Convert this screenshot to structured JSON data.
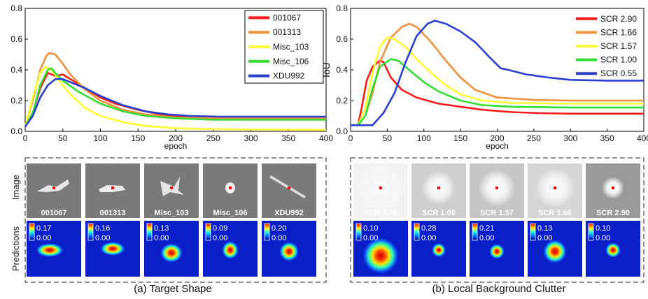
{
  "chart_data": [
    {
      "type": "line",
      "panel": "a",
      "title": "",
      "xlabel": "epoch",
      "ylabel": "",
      "xlim": [
        0,
        400
      ],
      "ylim": [
        0,
        0.8
      ],
      "xticks": [
        0,
        50,
        100,
        150,
        200,
        250,
        300,
        350,
        400
      ],
      "yticks": [
        0.0,
        0.2,
        0.4,
        0.6,
        0.8
      ],
      "legend_position": "top-right",
      "series": [
        {
          "name": "001067",
          "color": "#ff1a1a",
          "points": [
            [
              0,
              0.03
            ],
            [
              10,
              0.12
            ],
            [
              20,
              0.28
            ],
            [
              30,
              0.38
            ],
            [
              35,
              0.37
            ],
            [
              40,
              0.36
            ],
            [
              50,
              0.37
            ],
            [
              60,
              0.34
            ],
            [
              80,
              0.28
            ],
            [
              100,
              0.22
            ],
            [
              120,
              0.18
            ],
            [
              150,
              0.14
            ],
            [
              180,
              0.11
            ],
            [
              210,
              0.095
            ],
            [
              250,
              0.09
            ],
            [
              300,
              0.09
            ],
            [
              350,
              0.09
            ],
            [
              400,
              0.09
            ]
          ]
        },
        {
          "name": "001313",
          "color": "#f0913c",
          "points": [
            [
              0,
              0.03
            ],
            [
              10,
              0.2
            ],
            [
              20,
              0.4
            ],
            [
              28,
              0.49
            ],
            [
              32,
              0.51
            ],
            [
              40,
              0.5
            ],
            [
              50,
              0.44
            ],
            [
              60,
              0.37
            ],
            [
              80,
              0.27
            ],
            [
              100,
              0.2
            ],
            [
              130,
              0.14
            ],
            [
              160,
              0.11
            ],
            [
              200,
              0.09
            ],
            [
              250,
              0.085
            ],
            [
              300,
              0.085
            ],
            [
              350,
              0.085
            ],
            [
              400,
              0.085
            ]
          ]
        },
        {
          "name": "Misc_103",
          "color": "#ffff33",
          "points": [
            [
              0,
              0.03
            ],
            [
              10,
              0.22
            ],
            [
              20,
              0.38
            ],
            [
              28,
              0.42
            ],
            [
              35,
              0.4
            ],
            [
              45,
              0.33
            ],
            [
              60,
              0.24
            ],
            [
              80,
              0.15
            ],
            [
              100,
              0.1
            ],
            [
              130,
              0.06
            ],
            [
              160,
              0.035
            ],
            [
              200,
              0.02
            ],
            [
              250,
              0.015
            ],
            [
              300,
              0.012
            ],
            [
              400,
              0.01
            ]
          ]
        },
        {
          "name": "Misc_106",
          "color": "#33dd33",
          "points": [
            [
              0,
              0.03
            ],
            [
              10,
              0.12
            ],
            [
              20,
              0.3
            ],
            [
              30,
              0.4
            ],
            [
              35,
              0.41
            ],
            [
              40,
              0.38
            ],
            [
              50,
              0.33
            ],
            [
              70,
              0.26
            ],
            [
              100,
              0.18
            ],
            [
              130,
              0.13
            ],
            [
              160,
              0.1
            ],
            [
              200,
              0.085
            ],
            [
              250,
              0.075
            ],
            [
              300,
              0.075
            ],
            [
              400,
              0.075
            ]
          ]
        },
        {
          "name": "XDU992",
          "color": "#2a3fcf",
          "points": [
            [
              0,
              0.03
            ],
            [
              10,
              0.1
            ],
            [
              20,
              0.22
            ],
            [
              30,
              0.3
            ],
            [
              40,
              0.34
            ],
            [
              50,
              0.34
            ],
            [
              60,
              0.32
            ],
            [
              80,
              0.28
            ],
            [
              100,
              0.23
            ],
            [
              130,
              0.17
            ],
            [
              160,
              0.13
            ],
            [
              190,
              0.11
            ],
            [
              220,
              0.1
            ],
            [
              260,
              0.095
            ],
            [
              300,
              0.095
            ],
            [
              350,
              0.095
            ],
            [
              400,
              0.095
            ]
          ]
        }
      ]
    },
    {
      "type": "line",
      "panel": "b",
      "title": "",
      "xlabel": "epoch",
      "ylabel": "IoU",
      "xlim": [
        0,
        400
      ],
      "ylim": [
        0,
        0.8
      ],
      "xticks": [
        0,
        50,
        100,
        150,
        200,
        250,
        300,
        350,
        400
      ],
      "yticks": [
        0.0,
        0.2,
        0.4,
        0.6,
        0.8
      ],
      "legend_position": "top-right",
      "series": [
        {
          "name": "SCR 2.90",
          "color": "#ff1a1a",
          "points": [
            [
              0,
              0.04
            ],
            [
              10,
              0.04
            ],
            [
              15,
              0.15
            ],
            [
              22,
              0.33
            ],
            [
              30,
              0.42
            ],
            [
              40,
              0.46
            ],
            [
              45,
              0.45
            ],
            [
              55,
              0.35
            ],
            [
              70,
              0.27
            ],
            [
              90,
              0.22
            ],
            [
              120,
              0.18
            ],
            [
              150,
              0.16
            ],
            [
              180,
              0.14
            ],
            [
              220,
              0.125
            ],
            [
              260,
              0.118
            ],
            [
              300,
              0.115
            ],
            [
              400,
              0.115
            ]
          ]
        },
        {
          "name": "SCR 1.66",
          "color": "#f0913c",
          "points": [
            [
              0,
              0.04
            ],
            [
              10,
              0.04
            ],
            [
              20,
              0.1
            ],
            [
              30,
              0.25
            ],
            [
              40,
              0.45
            ],
            [
              55,
              0.61
            ],
            [
              70,
              0.68
            ],
            [
              80,
              0.7
            ],
            [
              90,
              0.68
            ],
            [
              110,
              0.58
            ],
            [
              130,
              0.46
            ],
            [
              150,
              0.35
            ],
            [
              170,
              0.27
            ],
            [
              200,
              0.22
            ],
            [
              250,
              0.205
            ],
            [
              300,
              0.2
            ],
            [
              400,
              0.2
            ]
          ]
        },
        {
          "name": "SCR 1.57",
          "color": "#ffff33",
          "points": [
            [
              0,
              0.04
            ],
            [
              10,
              0.04
            ],
            [
              20,
              0.15
            ],
            [
              30,
              0.38
            ],
            [
              40,
              0.55
            ],
            [
              50,
              0.61
            ],
            [
              60,
              0.6
            ],
            [
              75,
              0.55
            ],
            [
              90,
              0.47
            ],
            [
              110,
              0.38
            ],
            [
              130,
              0.3
            ],
            [
              150,
              0.24
            ],
            [
              180,
              0.2
            ],
            [
              220,
              0.185
            ],
            [
              300,
              0.18
            ],
            [
              400,
              0.18
            ]
          ]
        },
        {
          "name": "SCR 1.00",
          "color": "#33dd33",
          "points": [
            [
              0,
              0.04
            ],
            [
              10,
              0.04
            ],
            [
              20,
              0.1
            ],
            [
              30,
              0.28
            ],
            [
              40,
              0.42
            ],
            [
              55,
              0.47
            ],
            [
              65,
              0.46
            ],
            [
              80,
              0.4
            ],
            [
              100,
              0.32
            ],
            [
              120,
              0.26
            ],
            [
              150,
              0.2
            ],
            [
              180,
              0.17
            ],
            [
              220,
              0.16
            ],
            [
              300,
              0.155
            ],
            [
              400,
              0.155
            ]
          ]
        },
        {
          "name": "SCR 0.55",
          "color": "#2a3fcf",
          "points": [
            [
              0,
              0.04
            ],
            [
              15,
              0.04
            ],
            [
              30,
              0.04
            ],
            [
              45,
              0.12
            ],
            [
              60,
              0.25
            ],
            [
              75,
              0.45
            ],
            [
              90,
              0.62
            ],
            [
              105,
              0.7
            ],
            [
              115,
              0.72
            ],
            [
              130,
              0.7
            ],
            [
              150,
              0.65
            ],
            [
              170,
              0.58
            ],
            [
              190,
              0.48
            ],
            [
              205,
              0.41
            ],
            [
              215,
              0.4
            ],
            [
              240,
              0.37
            ],
            [
              270,
              0.35
            ],
            [
              300,
              0.335
            ],
            [
              350,
              0.33
            ],
            [
              400,
              0.33
            ]
          ]
        }
      ]
    }
  ],
  "panel_a": {
    "row_labels": {
      "image": "Image",
      "predictions": "Predictions"
    },
    "caption": "(a)  Target Shape",
    "thumbnails": [
      {
        "label": "001067",
        "max": "0.17",
        "min": "0.00"
      },
      {
        "label": "001313",
        "max": "0.16",
        "min": "0.00"
      },
      {
        "label": "Misc_103",
        "max": "0.13",
        "min": "0.00"
      },
      {
        "label": "Misc_106",
        "max": "0.09",
        "min": "0.00"
      },
      {
        "label": "XDU992",
        "max": "0.20",
        "min": "0.00"
      }
    ]
  },
  "panel_b": {
    "caption": "(b)  Local Background Clutter",
    "thumbnails": [
      {
        "label": "SCR 0.55",
        "max": "0.10",
        "min": "0.00"
      },
      {
        "label": "SCR 1.00",
        "max": "0.28",
        "min": "0.00"
      },
      {
        "label": "SCR 1.57",
        "max": "0.21",
        "min": "0.00"
      },
      {
        "label": "SCR 1.66",
        "max": "0.13",
        "min": "0.00"
      },
      {
        "label": "SCR 2.90",
        "max": "0.10",
        "min": "0.00"
      }
    ]
  }
}
